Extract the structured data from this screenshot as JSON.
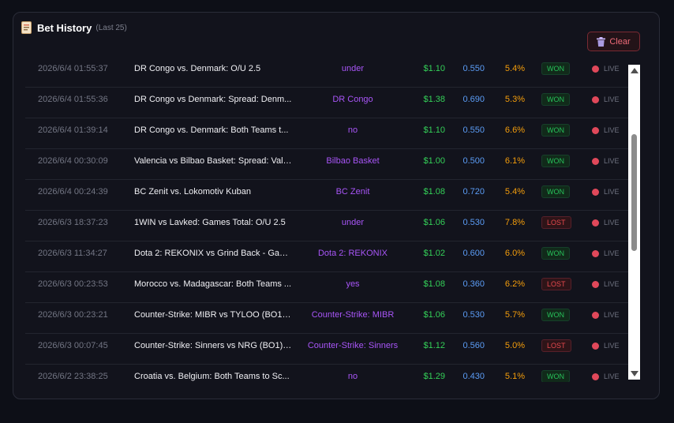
{
  "header": {
    "icon": "receipt-icon",
    "title": "Bet History",
    "subtitle": "(Last 25)",
    "clear_label": "Clear"
  },
  "colors": {
    "pick": "#a855f7",
    "stake": "#34d058",
    "price": "#5b9cf5",
    "edge": "#f59e0b",
    "won": "#27c15a",
    "lost": "#e5484d",
    "live_dot": "#e0485a"
  },
  "rows": [
    {
      "time": "2026/6/4 01:55:37",
      "event": "DR Congo vs. Denmark: O/U 2.5",
      "pick": "under",
      "stake": "$1.10",
      "price": "0.550",
      "edge": "5.4%",
      "result": "WON",
      "status": "LIVE"
    },
    {
      "time": "2026/6/4 01:55:36",
      "event": "DR Congo vs Denmark: Spread: Denm...",
      "pick": "DR Congo",
      "stake": "$1.38",
      "price": "0.690",
      "edge": "5.3%",
      "result": "WON",
      "status": "LIVE"
    },
    {
      "time": "2026/6/4 01:39:14",
      "event": "DR Congo vs. Denmark: Both Teams t...",
      "pick": "no",
      "stake": "$1.10",
      "price": "0.550",
      "edge": "6.6%",
      "result": "WON",
      "status": "LIVE"
    },
    {
      "time": "2026/6/4 00:30:09",
      "event": "Valencia vs Bilbao Basket: Spread: Vale...",
      "pick": "Bilbao Basket",
      "stake": "$1.00",
      "price": "0.500",
      "edge": "6.1%",
      "result": "WON",
      "status": "LIVE"
    },
    {
      "time": "2026/6/4 00:24:39",
      "event": "BC Zenit vs. Lokomotiv Kuban",
      "pick": "BC Zenit",
      "stake": "$1.08",
      "price": "0.720",
      "edge": "5.4%",
      "result": "WON",
      "status": "LIVE"
    },
    {
      "time": "2026/6/3 18:37:23",
      "event": "1WIN vs Lavked: Games Total: O/U 2.5",
      "pick": "under",
      "stake": "$1.06",
      "price": "0.530",
      "edge": "7.8%",
      "result": "LOST",
      "status": "LIVE"
    },
    {
      "time": "2026/6/3 11:34:27",
      "event": "Dota 2: REKONIX vs Grind Back - Gam...",
      "pick": "Dota 2: REKONIX",
      "stake": "$1.02",
      "price": "0.600",
      "edge": "6.0%",
      "result": "WON",
      "status": "LIVE"
    },
    {
      "time": "2026/6/3 00:23:53",
      "event": "Morocco vs. Madagascar: Both Teams ...",
      "pick": "yes",
      "stake": "$1.08",
      "price": "0.360",
      "edge": "6.2%",
      "result": "LOST",
      "status": "LIVE"
    },
    {
      "time": "2026/6/3 00:23:21",
      "event": "Counter-Strike: MIBR vs TYLOO (BO1) ...",
      "pick": "Counter-Strike: MIBR",
      "stake": "$1.06",
      "price": "0.530",
      "edge": "5.7%",
      "result": "WON",
      "status": "LIVE"
    },
    {
      "time": "2026/6/3 00:07:45",
      "event": "Counter-Strike: Sinners vs NRG (BO1) ...",
      "pick": "Counter-Strike: Sinners",
      "stake": "$1.12",
      "price": "0.560",
      "edge": "5.0%",
      "result": "LOST",
      "status": "LIVE"
    },
    {
      "time": "2026/6/2 23:38:25",
      "event": "Croatia vs. Belgium: Both Teams to Sc...",
      "pick": "no",
      "stake": "$1.29",
      "price": "0.430",
      "edge": "5.1%",
      "result": "WON",
      "status": "LIVE"
    }
  ]
}
